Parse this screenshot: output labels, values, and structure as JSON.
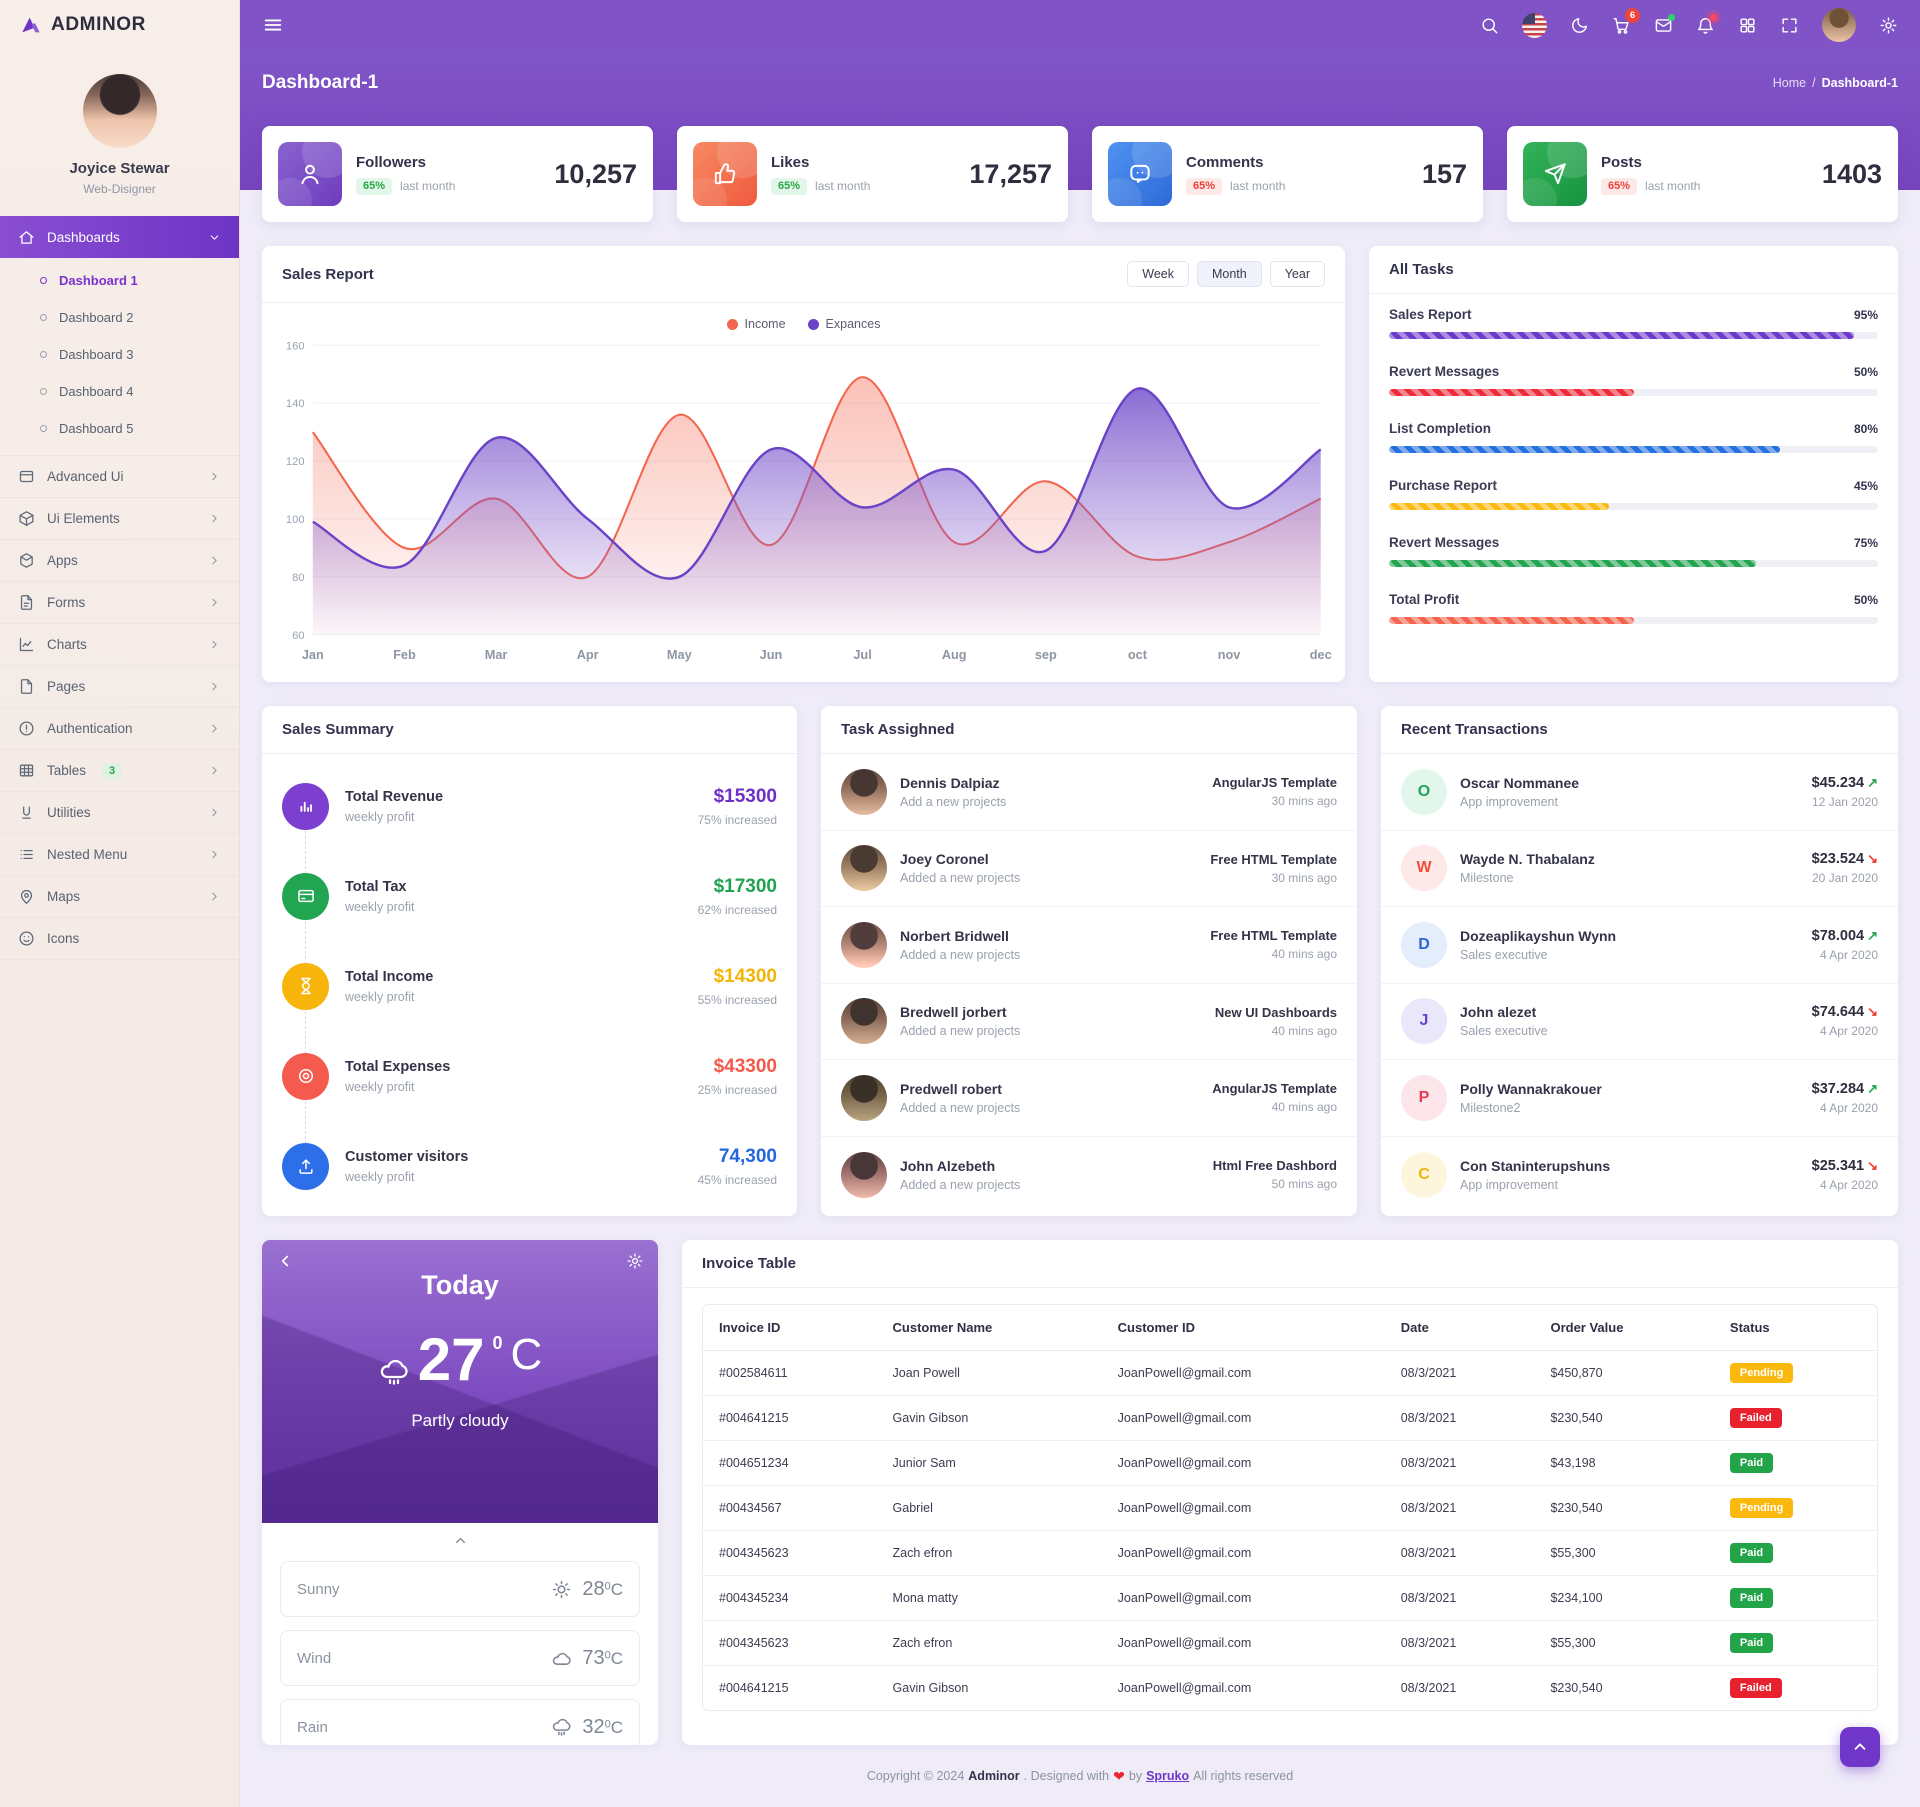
{
  "brand": {
    "name": "ADMINOR"
  },
  "topbar": {
    "icons": [
      {
        "name": "search"
      },
      {
        "name": "flag-us"
      },
      {
        "name": "moon"
      },
      {
        "name": "cart",
        "badge": "6"
      },
      {
        "name": "mail",
        "dot": "green"
      },
      {
        "name": "bell",
        "dot": "red"
      },
      {
        "name": "grid"
      },
      {
        "name": "fullscreen"
      },
      {
        "name": "avatar"
      },
      {
        "name": "gear"
      }
    ]
  },
  "sidebar": {
    "user": {
      "name": "Joyice Stewar",
      "role": "Web-Disigner"
    },
    "menu": [
      {
        "label": "Dashboards",
        "icon": "home",
        "active": true,
        "children": [
          {
            "label": "Dashboard 1",
            "active": true
          },
          {
            "label": "Dashboard 2"
          },
          {
            "label": "Dashboard 3"
          },
          {
            "label": "Dashboard 4"
          },
          {
            "label": "Dashboard 5"
          }
        ]
      },
      {
        "label": "Advanced Ui",
        "icon": "window",
        "chevron": true
      },
      {
        "label": "Ui Elements",
        "icon": "package",
        "chevron": true
      },
      {
        "label": "Apps",
        "icon": "apps",
        "chevron": true
      },
      {
        "label": "Forms",
        "icon": "file",
        "chevron": true
      },
      {
        "label": "Charts",
        "icon": "chart",
        "chevron": true
      },
      {
        "label": "Pages",
        "icon": "page",
        "chevron": true
      },
      {
        "label": "Authentication",
        "icon": "alert",
        "chevron": true
      },
      {
        "label": "Tables",
        "icon": "table",
        "badge": "3",
        "chevron": true
      },
      {
        "label": "Utilities",
        "icon": "utilities",
        "chevron": true
      },
      {
        "label": "Nested Menu",
        "icon": "list",
        "chevron": true
      },
      {
        "label": "Maps",
        "icon": "map",
        "chevron": true
      },
      {
        "label": "Icons",
        "icon": "smile"
      }
    ]
  },
  "page": {
    "title": "Dashboard-1",
    "breadcrumb_home": "Home",
    "breadcrumb_sep": "/",
    "breadcrumb_current": "Dashboard-1"
  },
  "stat_cards": [
    {
      "label": "Followers",
      "value": "10,257",
      "badge": "65%",
      "badge_tone": "green",
      "note": "last month",
      "icon": "person",
      "tile": "purple"
    },
    {
      "label": "Likes",
      "value": "17,257",
      "badge": "65%",
      "badge_tone": "green",
      "note": "last month",
      "icon": "thumb",
      "tile": "orange"
    },
    {
      "label": "Comments",
      "value": "157",
      "badge": "65%",
      "badge_tone": "red",
      "note": "last month",
      "icon": "chat",
      "tile": "blue"
    },
    {
      "label": "Posts",
      "value": "1403",
      "badge": "65%",
      "badge_tone": "red",
      "note": "last month",
      "icon": "send",
      "tile": "green"
    }
  ],
  "sales_report": {
    "title": "Sales Report",
    "tabs": [
      "Week",
      "Month",
      "Year"
    ],
    "active_tab": "Month"
  },
  "chart_data": {
    "type": "area",
    "title": "Sales Report",
    "x": [
      "Jan",
      "Feb",
      "Mar",
      "Apr",
      "May",
      "Jun",
      "Jul",
      "Aug",
      "sep",
      "oct",
      "nov",
      "dec"
    ],
    "series": [
      {
        "name": "Income",
        "color": "#f4654e",
        "values": [
          130,
          90,
          107,
          80,
          136,
          91,
          149,
          92,
          113,
          87,
          92,
          107
        ]
      },
      {
        "name": "Expances",
        "color": "#6a43c6",
        "values": [
          99,
          84,
          128,
          100,
          80,
          124,
          104,
          117,
          89,
          145,
          104,
          124
        ]
      }
    ],
    "ylim": [
      60,
      160
    ],
    "yticks": [
      60,
      80,
      100,
      120,
      140,
      160
    ],
    "legend_position": "top",
    "grid": true
  },
  "all_tasks": {
    "title": "All Tasks",
    "items": [
      {
        "label": "Sales Report",
        "percent": 95,
        "color": "#6d39cc"
      },
      {
        "label": "Revert Messages",
        "percent": 50,
        "color": "#ed2b3a"
      },
      {
        "label": "List Completion",
        "percent": 80,
        "color": "#2570e0"
      },
      {
        "label": "Purchase Report",
        "percent": 45,
        "color": "#fcb90d"
      },
      {
        "label": "Revert Messages",
        "percent": 75,
        "color": "#23a44e"
      },
      {
        "label": "Total Profit",
        "percent": 50,
        "color": "#f4634c"
      }
    ]
  },
  "sales_summary": {
    "title": "Sales Summary",
    "items": [
      {
        "label": "Total Revenue",
        "sub": "weekly profit",
        "value": "$15300",
        "value_color": "#6d30c6",
        "delta": "75% increased",
        "icon": "bars",
        "icon_bg": "#7c3fd0"
      },
      {
        "label": "Total Tax",
        "sub": "weekly profit",
        "value": "$17300",
        "value_color": "#1fa251",
        "delta": "62% increased",
        "icon": "card",
        "icon_bg": "#22a551"
      },
      {
        "label": "Total Income",
        "sub": "weekly profit",
        "value": "$14300",
        "value_color": "#f3b406",
        "delta": "55% increased",
        "icon": "hourglass",
        "icon_bg": "#f7b50c"
      },
      {
        "label": "Total Expenses",
        "sub": "weekly profit",
        "value": "$43300",
        "value_color": "#f4594a",
        "delta": "25% increased",
        "icon": "target",
        "icon_bg": "#f45b4e"
      },
      {
        "label": "Customer visitors",
        "sub": "weekly profit",
        "value": "74,300",
        "value_color": "#2465e0",
        "delta": "45% increased",
        "icon": "upload",
        "icon_bg": "#2d6fe8"
      }
    ]
  },
  "task_assigned": {
    "title": "Task Assighned",
    "items": [
      {
        "name": "Dennis Dalpiaz",
        "sub": "Add a new projects",
        "meta": "AngularJS Template",
        "time": "30 mins ago"
      },
      {
        "name": "Joey Coronel",
        "sub": "Added a new projects",
        "meta": "Free HTML Template",
        "time": "30 mins ago"
      },
      {
        "name": "Norbert Bridwell",
        "sub": "Added a new projects",
        "meta": "Free HTML Template",
        "time": "40 mins ago"
      },
      {
        "name": "Bredwell jorbert",
        "sub": "Added a new projects",
        "meta": "New UI Dashboards",
        "time": "40 mins ago"
      },
      {
        "name": "Predwell robert",
        "sub": "Added a new projects",
        "meta": "AngularJS Template",
        "time": "40 mins ago"
      },
      {
        "name": "John Alzebeth",
        "sub": "Added a new projects",
        "meta": "Html Free Dashbord",
        "time": "50 mins ago"
      }
    ]
  },
  "transactions": {
    "title": "Recent Transactions",
    "items": [
      {
        "initial": "O",
        "name": "Oscar Nommanee",
        "sub": "App improvement",
        "amount": "$45.234",
        "direction": "up",
        "date": "12 Jan 2020",
        "bg": "#e3f6ec",
        "fg": "#22a35c"
      },
      {
        "initial": "W",
        "name": "Wayde N. Thabalanz",
        "sub": "Milestone",
        "amount": "$23.524",
        "direction": "down",
        "date": "20 Jan 2020",
        "bg": "#fde9e7",
        "fg": "#ef4d3c"
      },
      {
        "initial": "D",
        "name": "Dozeaplikayshun Wynn",
        "sub": "Sales executive",
        "amount": "$78.004",
        "direction": "up",
        "date": "4 Apr 2020",
        "bg": "#e4edfb",
        "fg": "#2e66d6"
      },
      {
        "initial": "J",
        "name": "John alezet",
        "sub": "Sales executive",
        "amount": "$74.644",
        "direction": "down",
        "date": "4 Apr 2020",
        "bg": "#eae7fa",
        "fg": "#6544c9"
      },
      {
        "initial": "P",
        "name": "Polly Wannakrakouer",
        "sub": "Milestone2",
        "amount": "$37.284",
        "direction": "up",
        "date": "4 Apr 2020",
        "bg": "#fde6ea",
        "fg": "#e43b52"
      },
      {
        "initial": "C",
        "name": "Con Staninterupshuns",
        "sub": "App improvement",
        "amount": "$25.341",
        "direction": "down",
        "date": "4 Apr 2020",
        "bg": "#fdf6dd",
        "fg": "#edb411"
      }
    ]
  },
  "weather": {
    "day": "Today",
    "temp": "27",
    "temp_sup": "0",
    "temp_unit": "C",
    "condition": "Partly cloudy",
    "rows": [
      {
        "label": "Sunny",
        "icon": "sun",
        "value": "28",
        "sup": "0",
        "unit": "C"
      },
      {
        "label": "Wind",
        "icon": "cloud",
        "value": "73",
        "sup": "0",
        "unit": "C"
      },
      {
        "label": "Rain",
        "icon": "rain",
        "value": "32",
        "sup": "0",
        "unit": "C"
      }
    ]
  },
  "invoice": {
    "title": "Invoice Table",
    "columns": [
      "Invoice ID",
      "Customer Name",
      "Customer ID",
      "Date",
      "Order Value",
      "Status"
    ],
    "rows": [
      [
        "#002584611",
        "Joan Powell",
        "JoanPowell@gmail.com",
        "08/3/2021",
        "$450,870",
        "Pending"
      ],
      [
        "#004641215",
        "Gavin Gibson",
        "JoanPowell@gmail.com",
        "08/3/2021",
        "$230,540",
        "Failed"
      ],
      [
        "#004651234",
        "Junior Sam",
        "JoanPowell@gmail.com",
        "08/3/2021",
        "$43,198",
        "Paid"
      ],
      [
        "#00434567",
        "Gabriel",
        "JoanPowell@gmail.com",
        "08/3/2021",
        "$230,540",
        "Pending"
      ],
      [
        "#004345623",
        "Zach efron",
        "JoanPowell@gmail.com",
        "08/3/2021",
        "$55,300",
        "Paid"
      ],
      [
        "#004345234",
        "Mona matty",
        "JoanPowell@gmail.com",
        "08/3/2021",
        "$234,100",
        "Paid"
      ],
      [
        "#004345623",
        "Zach efron",
        "JoanPowell@gmail.com",
        "08/3/2021",
        "$55,300",
        "Paid"
      ],
      [
        "#004641215",
        "Gavin Gibson",
        "JoanPowell@gmail.com",
        "08/3/2021",
        "$230,540",
        "Failed"
      ]
    ],
    "status_colors": {
      "Pending": "#fcb90d",
      "Failed": "#e7212e",
      "Paid": "#23a449"
    }
  },
  "footer": {
    "prefix": "Copyright © 2024",
    "brand": "Adminor",
    "mid": ". Designed with",
    "heart": "❤",
    "by": "by",
    "link": "Spruko",
    "suffix": "All rights reserved"
  }
}
